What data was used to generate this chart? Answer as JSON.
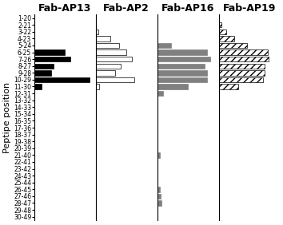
{
  "peptide_positions": [
    "1-20",
    "2-21",
    "3-22",
    "4-23",
    "5-24",
    "6-25",
    "7-26",
    "8-27",
    "9-28",
    "10-29",
    "11-30",
    "12-31",
    "13-32",
    "14-33",
    "15-34",
    "16-35",
    "17-36",
    "18-37",
    "19-38",
    "20-39",
    "21-40",
    "22-41",
    "23-42",
    "24-43",
    "25-44",
    "26-45",
    "27-46",
    "28-47",
    "29-48",
    "30-49"
  ],
  "antibodies": [
    "Fab-AP13",
    "Fab-AP2",
    "Fab-AP16",
    "Fab-AP19"
  ],
  "colors": [
    "black",
    "white",
    "#808080",
    "white"
  ],
  "hatches": [
    null,
    null,
    null,
    "////"
  ],
  "edgecolors": [
    "black",
    "black",
    "#808080",
    "black"
  ],
  "data": {
    "Fab-AP13": [
      0,
      0,
      0,
      0,
      0,
      0.55,
      0.65,
      0.35,
      0.3,
      1.0,
      0.12,
      0,
      0,
      0,
      0,
      0,
      0,
      0,
      0,
      0,
      0,
      0,
      0,
      0,
      0,
      0,
      0,
      0,
      0,
      0
    ],
    "Fab-AP2": [
      0,
      0,
      0.04,
      0.25,
      0.42,
      0.55,
      0.65,
      0.45,
      0.35,
      0.7,
      0.05,
      0,
      0,
      0,
      0,
      0,
      0,
      0,
      0,
      0,
      0,
      0,
      0,
      0,
      0,
      0,
      0,
      0,
      0,
      0
    ],
    "Fab-AP16": [
      0,
      0,
      0,
      0,
      0.25,
      0.9,
      0.95,
      0.85,
      0.9,
      0.9,
      0.55,
      0.1,
      0,
      0,
      0,
      0,
      0,
      0,
      0,
      0,
      0.04,
      0,
      0,
      0,
      0,
      0.04,
      0.06,
      0.07,
      0,
      0
    ],
    "Fab-AP19": [
      0,
      0.04,
      0.12,
      0.28,
      0.5,
      0.88,
      0.9,
      0.82,
      0.82,
      0.8,
      0.35,
      0,
      0,
      0,
      0,
      0,
      0,
      0,
      0,
      0,
      0,
      0,
      0,
      0,
      0,
      0,
      0,
      0,
      0,
      0
    ]
  },
  "xlim": [
    0,
    1.1
  ],
  "title_fontsize": 9,
  "tick_fontsize": 5.5,
  "ylabel": "Peptipe position",
  "ylabel_fontsize": 8,
  "figsize": [
    3.54,
    2.82
  ],
  "dpi": 100
}
